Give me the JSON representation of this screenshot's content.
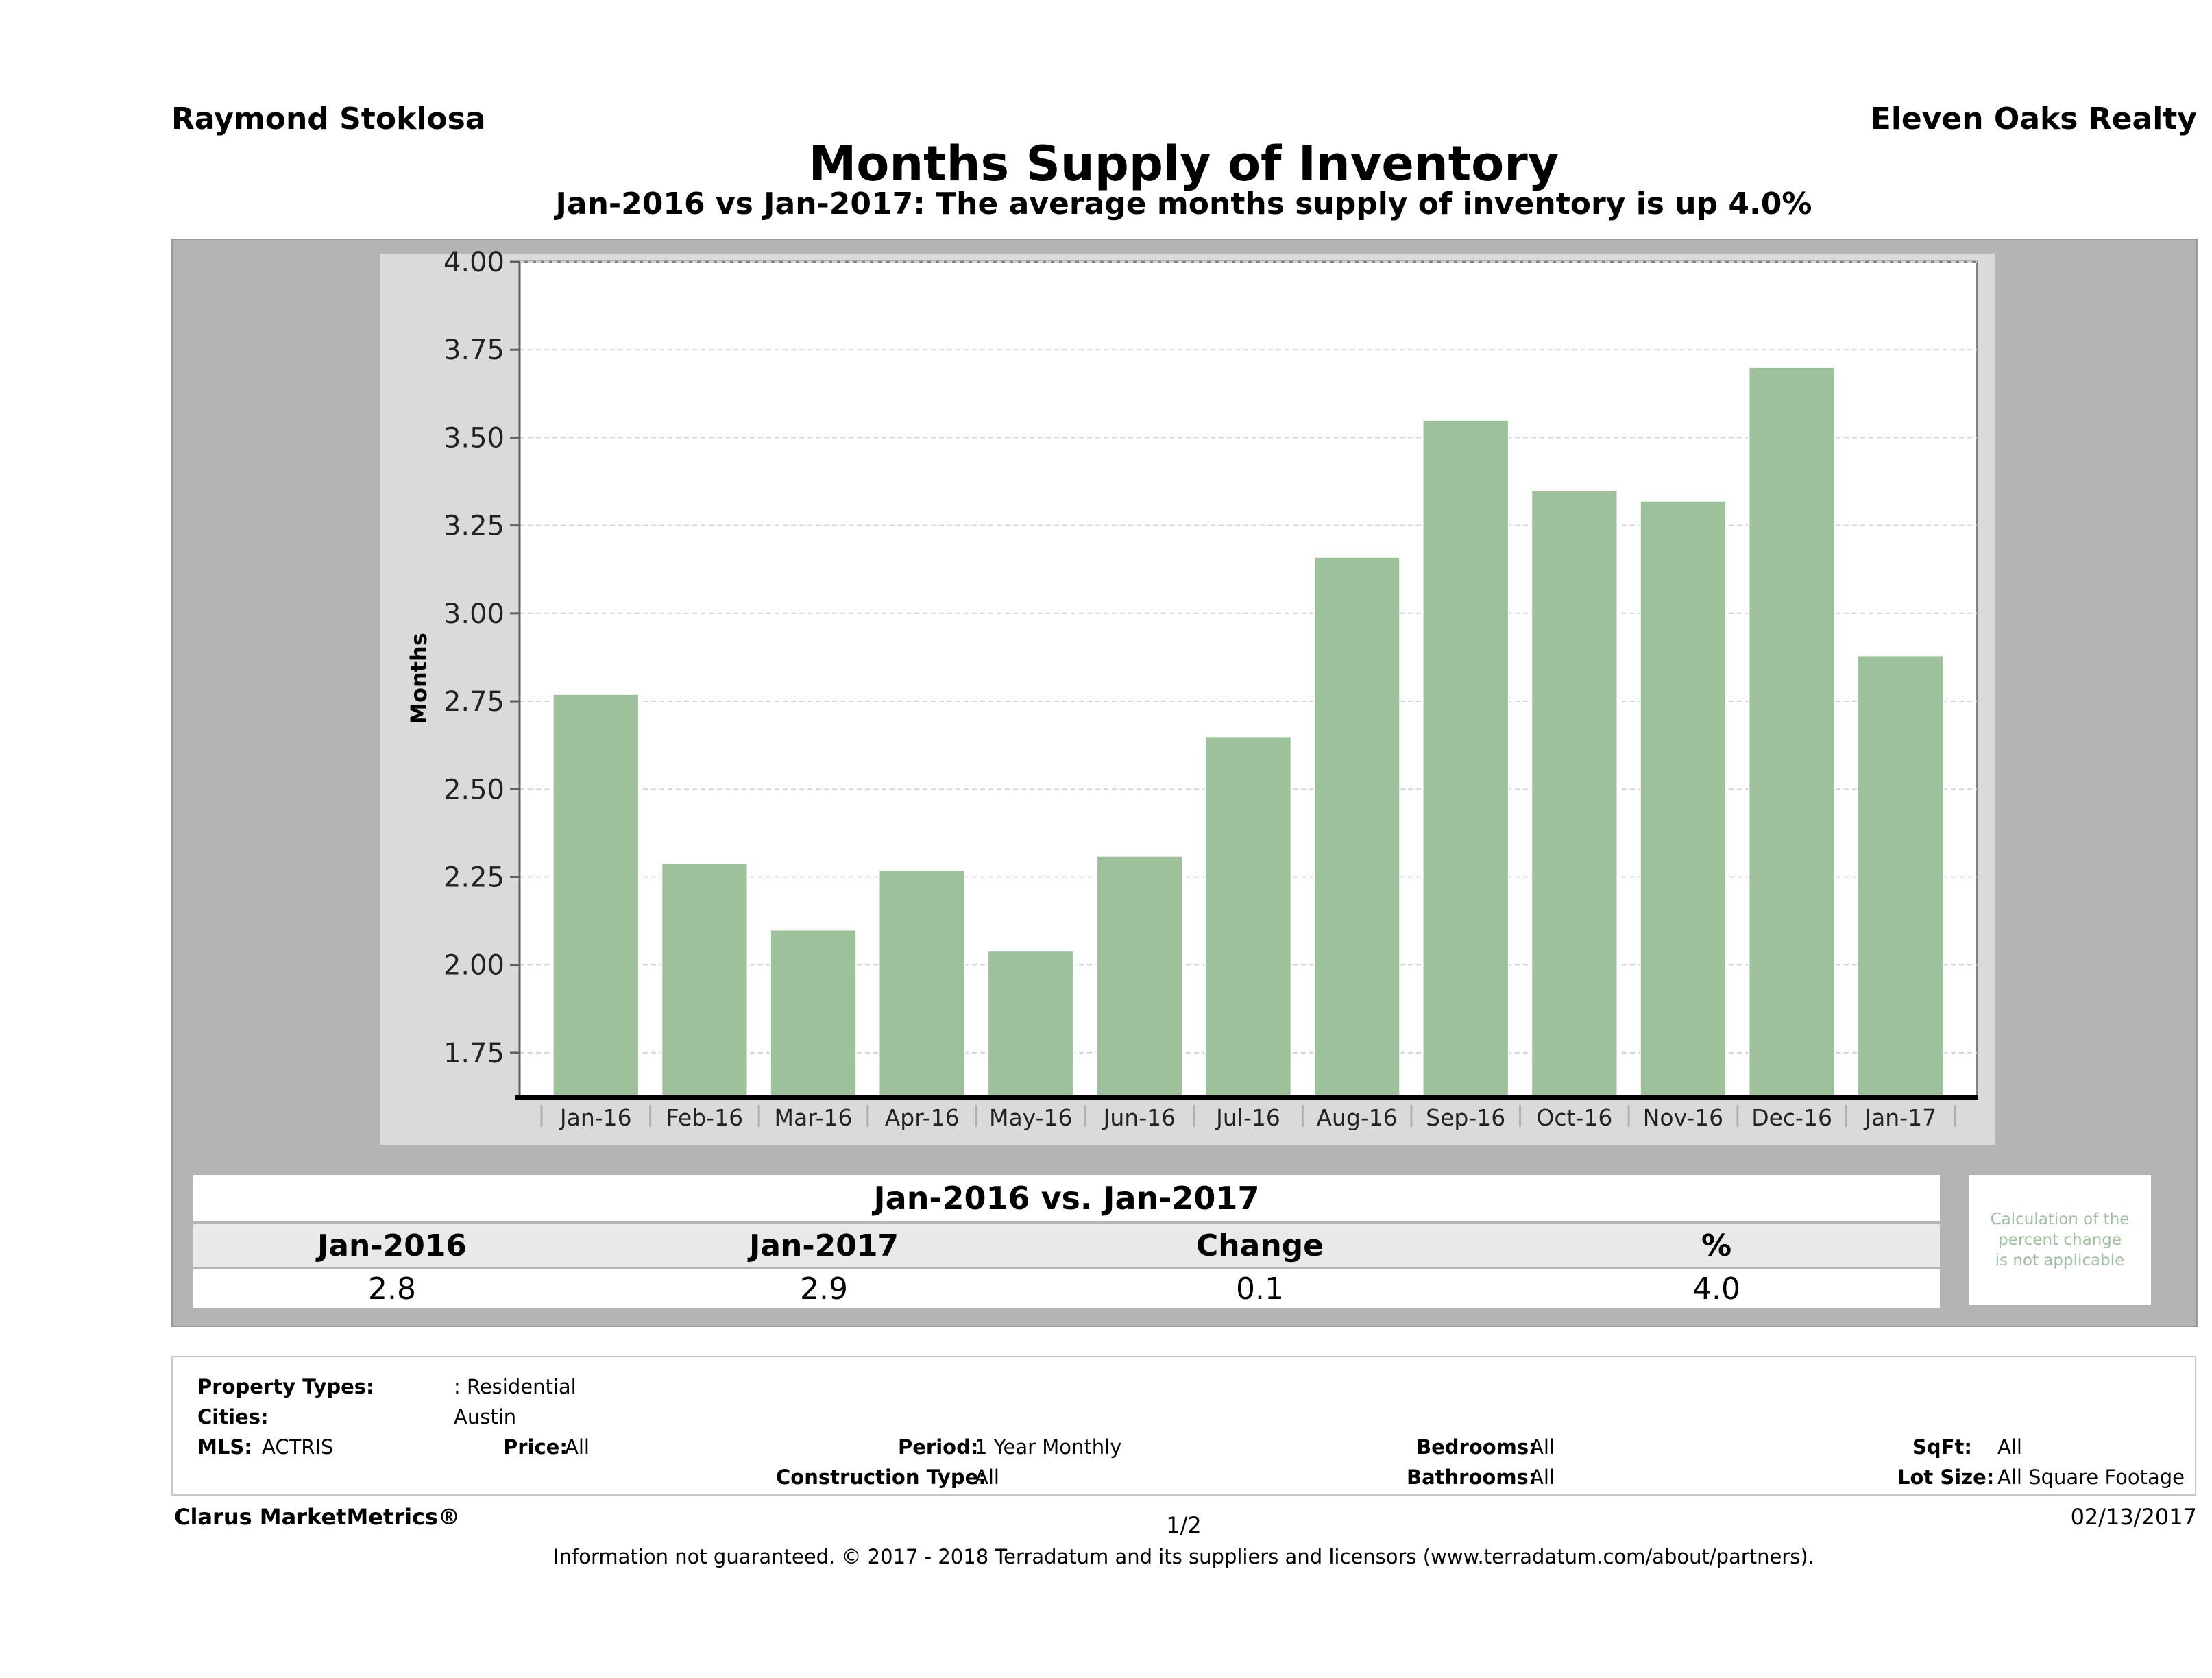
{
  "header": {
    "agent": "Raymond Stoklosa",
    "company": "Eleven Oaks Realty"
  },
  "chart_data": {
    "type": "bar",
    "title": "Months Supply of Inventory",
    "subtitle": "Jan-2016 vs Jan-2017: The average months supply of inventory is up 4.0%",
    "xlabel": "",
    "ylabel": "Months",
    "categories": [
      "Jan-16",
      "Feb-16",
      "Mar-16",
      "Apr-16",
      "May-16",
      "Jun-16",
      "Jul-16",
      "Aug-16",
      "Sep-16",
      "Oct-16",
      "Nov-16",
      "Dec-16",
      "Jan-17"
    ],
    "values": [
      2.77,
      2.29,
      2.1,
      2.27,
      2.04,
      2.31,
      2.65,
      3.16,
      3.55,
      3.35,
      3.32,
      3.7,
      2.88
    ],
    "ylim": [
      1.625,
      4.0
    ],
    "yticks": [
      "1.75",
      "2.00",
      "2.25",
      "2.50",
      "2.75",
      "3.00",
      "3.25",
      "3.50",
      "3.75",
      "4.00"
    ],
    "grid": true,
    "legend": "none",
    "bar_color": "#9dc29b",
    "panel_color": "#b4b4b4"
  },
  "summary": {
    "title": "Jan-2016 vs. Jan-2017",
    "headers": [
      "Jan-2016",
      "Jan-2017",
      "Change",
      "%"
    ],
    "values": [
      "2.8",
      "2.9",
      "0.1",
      "4.0"
    ],
    "note_line1": "Calculation of the",
    "note_line2": "percent change",
    "note_line3": "is not applicable"
  },
  "filters": {
    "property_types_label": "Property Types:",
    "property_types_value": ": Residential",
    "cities_label": "Cities:",
    "cities_value": "Austin",
    "mls_label": "MLS:",
    "mls_value": "ACTRIS",
    "price_label": "Price:",
    "price_value": "All",
    "period_label": "Period:",
    "period_value": "1 Year Monthly",
    "bedrooms_label": "Bedrooms:",
    "bedrooms_value": "All",
    "sqft_label": "SqFt:",
    "sqft_value": "All",
    "construction_label": "Construction Type:",
    "construction_value": "All",
    "bathrooms_label": "Bathrooms:",
    "bathrooms_value": "All",
    "lot_size_label": "Lot Size:",
    "lot_size_value": "All Square Footage"
  },
  "footer": {
    "brand": "Clarus MarketMetrics®",
    "page": "1/2",
    "date": "02/13/2017",
    "disclaimer": "Information not guaranteed. © 2017 - 2018 Terradatum and its suppliers and licensors (www.terradatum.com/about/partners)."
  }
}
